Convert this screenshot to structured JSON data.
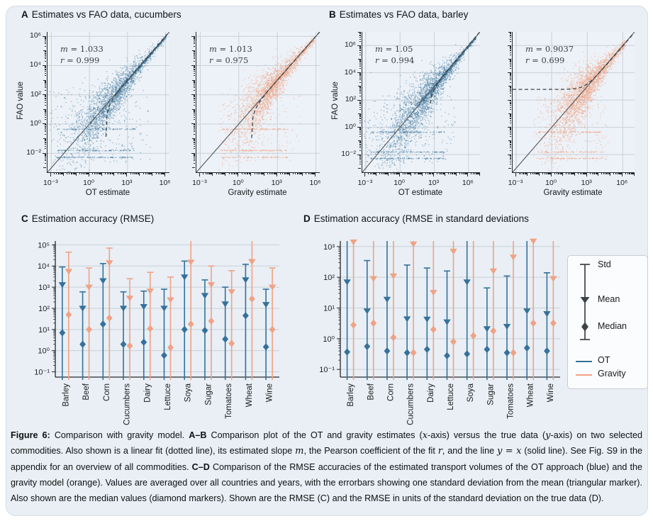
{
  "titles": {
    "A": {
      "letter": "A",
      "text": "Estimates vs FAO data, cucumbers"
    },
    "B": {
      "letter": "B",
      "text": "Estimates vs FAO data, barley"
    },
    "C": {
      "letter": "C",
      "text": "Estimation accuracy (RMSE)"
    },
    "D": {
      "letter": "D",
      "text": "Estimation accuracy (RMSE in standard deviations"
    }
  },
  "colors": {
    "ot": "#35719b",
    "gravity": "#f0a285",
    "ot_points": "#2f6c94",
    "gravity_points": "#ee9b78",
    "plot_bg": "#edf2f8",
    "grid": "#c7d0d8",
    "figure_bg": "#e9eff5",
    "identity_line": "#54595d",
    "fit_line": "#3c4145",
    "legend_glyph": "#3e4347"
  },
  "stats_format": {
    "m_symbol": "m",
    "r_symbol": "r",
    "eq": " = "
  },
  "axes": {
    "ab_x_ticks": {
      "values": [
        -3,
        0,
        3,
        6
      ],
      "labels": [
        "10⁻³",
        "10⁰",
        "10³",
        "10⁶"
      ]
    },
    "ab_y_ticks": {
      "values": [
        -2,
        0,
        2,
        4,
        6
      ],
      "labels": [
        "10⁻²",
        "10⁰",
        "10²",
        "10⁴",
        "10⁶"
      ]
    },
    "c_y_ticks": {
      "values": [
        -1,
        0,
        1,
        2,
        3,
        4,
        5
      ],
      "labels": [
        "10⁻¹",
        "10⁰",
        "10¹",
        "10²",
        "10³",
        "10⁴",
        "10⁵"
      ]
    },
    "d_y_ticks": {
      "values": [
        -1,
        0,
        1,
        2,
        3
      ],
      "labels": [
        "10⁻¹",
        "10⁰",
        "10¹",
        "10²",
        "10³"
      ]
    }
  },
  "chart_data": [
    {
      "type": "scatter",
      "panel": "A",
      "title": "Estimates vs FAO data, cucumbers",
      "ylabel": "FAO value",
      "xlim": [
        0.001,
        1000000
      ],
      "ylim": [
        0.001,
        1000000
      ],
      "grid": true,
      "subplots": [
        {
          "xlabel": "OT estimate",
          "series": "OT",
          "slope_m": 1.033,
          "pearson_r": 0.999,
          "m_text": "1.033",
          "r_text": "0.999",
          "fit_intercept": -20.7,
          "fit_line": "dotted",
          "identity_line": "y = x solid"
        },
        {
          "xlabel": "Gravity estimate",
          "series": "Gravity",
          "slope_m": 1.013,
          "pearson_r": 0.975,
          "m_text": "1.013",
          "r_text": "0.975",
          "fit_intercept": -10.1,
          "fit_line": "dotted",
          "identity_line": "y = x solid"
        }
      ]
    },
    {
      "type": "scatter",
      "panel": "B",
      "title": "Estimates vs FAO data, barley",
      "ylabel": "FAO value",
      "xlim": [
        0.001,
        10000000
      ],
      "ylim": [
        0.001,
        10000000
      ],
      "grid": true,
      "subplots": [
        {
          "xlabel": "OT estimate",
          "series": "OT",
          "slope_m": 1.05,
          "pearson_r": 0.994,
          "m_text": "1.05",
          "r_text": "0.994",
          "fit_intercept": -420,
          "fit_line": "dotted",
          "identity_line": "y = x solid"
        },
        {
          "xlabel": "Gravity estimate",
          "series": "Gravity",
          "slope_m": 0.9037,
          "pearson_r": 0.699,
          "m_text": "0.9037",
          "r_text": "0.699",
          "fit_intercept": 600,
          "fit_line": "dotted",
          "identity_line": "y = x solid"
        }
      ]
    },
    {
      "type": "errorbar",
      "panel": "C",
      "title": "Estimation accuracy (RMSE)",
      "yscale": "log",
      "ylim": [
        0.1,
        100000
      ],
      "grid": true,
      "categories": [
        "Barley",
        "Beef",
        "Corn",
        "Cucumbers",
        "Dairy",
        "Lettuce",
        "Soya",
        "Sugar",
        "Tomatoes",
        "Wheat",
        "Wine"
      ],
      "series": [
        {
          "name": "OT",
          "color": "#35719b",
          "mean": [
            1300,
            100,
            2000,
            100,
            120,
            100,
            3000,
            400,
            160,
            2200,
            150
          ],
          "median": [
            7,
            2,
            18,
            2,
            2.5,
            0.6,
            10,
            9,
            3.5,
            45,
            1.5
          ],
          "std_top": [
            9000,
            600,
            13000,
            600,
            650,
            800,
            17000,
            2200,
            1000,
            12000,
            800
          ],
          "std_bottom_clipped_below_axis": true
        },
        {
          "name": "Gravity",
          "color": "#f0a285",
          "mean": [
            5500,
            1000,
            14000,
            300,
            650,
            250,
            15000,
            1300,
            600,
            16000,
            1000
          ],
          "median": [
            50,
            10,
            35,
            1.7,
            11,
            1.4,
            18,
            25,
            2.2,
            280,
            10
          ],
          "std_top": [
            45000,
            8000,
            70000,
            2500,
            5000,
            3000,
            null,
            10000,
            6000,
            null,
            8000
          ],
          "std_bottom_clipped_below_axis": true
        }
      ]
    },
    {
      "type": "errorbar",
      "panel": "D",
      "title": "Estimation accuracy (RMSE in standard deviations",
      "yscale": "log",
      "ylim": [
        0.1,
        1000
      ],
      "grid": true,
      "categories": [
        "Barley",
        "Beef",
        "Corn",
        "Cucumbers",
        "Dairy",
        "Lettuce",
        "Soya",
        "Sugar",
        "Tomatoes",
        "Wheat",
        "Wine"
      ],
      "series": [
        {
          "name": "OT",
          "color": "#35719b",
          "mean": [
            70,
            8,
            19,
            4.4,
            4.3,
            3.5,
            70,
            2.1,
            2.5,
            8,
            6.5
          ],
          "median": [
            0.37,
            0.56,
            0.4,
            0.35,
            0.45,
            0.28,
            0.32,
            0.45,
            0.35,
            0.5,
            0.4
          ],
          "std_top": [
            null,
            350,
            null,
            250,
            200,
            160,
            null,
            45,
            110,
            null,
            140
          ],
          "std_bottom_clipped_below_axis": true
        },
        {
          "name": "Gravity",
          "color": "#f0a285",
          "mean": [
            1400,
            90,
            110,
            1200,
            32,
            700,
            2000,
            160,
            450,
            1500,
            90
          ],
          "median": [
            2.8,
            3.2,
            1.1,
            0.35,
            2.0,
            0.8,
            1.25,
            1.8,
            0.35,
            3.2,
            3.2
          ],
          "std_top": [
            null,
            null,
            null,
            null,
            null,
            null,
            null,
            null,
            null,
            null,
            null
          ],
          "std_bottom_clipped_below_axis": true
        }
      ]
    }
  ],
  "legend": {
    "std_label": "Std",
    "mean_label": "Mean",
    "median_label": "Median",
    "ot_label": "OT",
    "gravity_label": "Gravity"
  },
  "caption": {
    "segments": [
      {
        "t": "Figure 6:",
        "b": 1
      },
      {
        "t": " Comparison with gravity model.  "
      },
      {
        "t": "A–B",
        "b": 1
      },
      {
        "t": " Comparison plot of the OT and gravity estimates ("
      },
      {
        "t": "x",
        "m": 1
      },
      {
        "t": "-axis) versus the true data ("
      },
      {
        "t": "y",
        "m": 1
      },
      {
        "t": "-axis) on two selected commodities. Also shown is a linear fit (dotted line), its estimated slope "
      },
      {
        "t": "m",
        "m": 1
      },
      {
        "t": ", the Pearson coefficient of the fit "
      },
      {
        "t": "r",
        "m": 1
      },
      {
        "t": ", and the line "
      },
      {
        "t": "y = x",
        "m": 1
      },
      {
        "t": " (solid line). See Fig. S9 in the appendix for an overview of all commodities. "
      },
      {
        "t": "C–D",
        "b": 1
      },
      {
        "t": " Comparison of the RMSE accuracies of the estimated transport volumes of the OT approach (blue) and the gravity model (orange). Values are averaged over all countries and years, with the errorbars showing one standard deviation from the mean (triangular marker). Also shown are the median values (diamond markers). Shown are the RMSE (C) and the RMSE in units of the standard deviation on the true data (D)."
      }
    ]
  }
}
